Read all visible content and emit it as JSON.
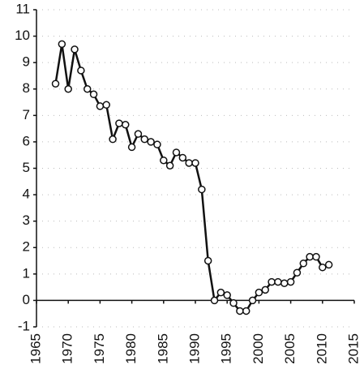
{
  "chart_data": {
    "type": "line",
    "x": [
      1968,
      1969,
      1970,
      1971,
      1972,
      1973,
      1974,
      1975,
      1976,
      1977,
      1978,
      1979,
      1980,
      1981,
      1982,
      1983,
      1984,
      1985,
      1986,
      1987,
      1988,
      1989,
      1990,
      1991,
      1992,
      1993,
      1994,
      1995,
      1996,
      1997,
      1998,
      1999,
      2000,
      2001,
      2002,
      2003,
      2004,
      2005,
      2006,
      2007,
      2008,
      2009,
      2010,
      2011
    ],
    "series": [
      {
        "color": "#111111",
        "values": [
          8.2,
          9.7,
          8.0,
          9.5,
          8.7,
          8.0,
          7.8,
          7.35,
          7.4,
          6.1,
          6.7,
          6.65,
          5.8,
          6.3,
          6.1,
          6.0,
          5.9,
          5.3,
          5.1,
          5.6,
          5.4,
          5.2,
          5.2,
          4.2,
          1.5,
          0.0,
          0.3,
          0.2,
          -0.1,
          -0.4,
          -0.4,
          0.0,
          0.3,
          0.4,
          0.7,
          0.7,
          0.65,
          0.7,
          1.05,
          1.4,
          1.65,
          1.65,
          1.25,
          1.35
        ]
      }
    ],
    "xlim": [
      1965,
      2015
    ],
    "xticks": [
      1965,
      1970,
      1975,
      1980,
      1985,
      1990,
      1995,
      2000,
      2005,
      2010,
      2015
    ],
    "ylim": [
      -1,
      11
    ],
    "yticks": [
      -1,
      0,
      1,
      2,
      3,
      4,
      5,
      6,
      7,
      8,
      9,
      10,
      11
    ],
    "grid": true
  }
}
